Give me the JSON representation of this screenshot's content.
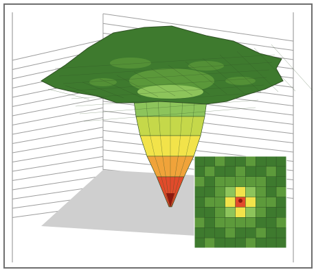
{
  "figure": {
    "type": "3d-surface-with-inset-heatmap",
    "colors": {
      "frame_border": "#6e6e6e",
      "background": "#ffffff",
      "wall_line": "#9c9c9c",
      "floor": "#cfcfcf",
      "surface_dark": "#3e7a2e",
      "surface_mid": "#5d9a3b",
      "surface_light": "#8dc45b",
      "yellow_green": "#c5d84a",
      "yellow": "#f2e34a",
      "orange": "#f0a33a",
      "red": "#e14b2b",
      "dark_red": "#8a1a10",
      "mesh_line": "#2f4f24"
    },
    "funnel_bands": [
      "surface_light",
      "yellow_green",
      "yellow",
      "orange",
      "red"
    ],
    "inset_grid": {
      "rows": 9,
      "cols": 9,
      "values": [
        [
          0,
          0,
          1,
          0,
          0,
          1,
          0,
          0,
          0
        ],
        [
          0,
          1,
          0,
          0,
          1,
          0,
          0,
          1,
          0
        ],
        [
          1,
          0,
          1,
          1,
          1,
          1,
          1,
          0,
          0
        ],
        [
          0,
          0,
          1,
          2,
          3,
          2,
          1,
          0,
          1
        ],
        [
          0,
          1,
          1,
          3,
          5,
          3,
          1,
          1,
          0
        ],
        [
          0,
          0,
          1,
          2,
          3,
          2,
          1,
          0,
          0
        ],
        [
          1,
          0,
          1,
          1,
          1,
          1,
          0,
          0,
          1
        ],
        [
          0,
          0,
          0,
          1,
          0,
          0,
          1,
          0,
          0
        ],
        [
          0,
          1,
          0,
          0,
          0,
          1,
          0,
          0,
          0
        ]
      ]
    }
  }
}
